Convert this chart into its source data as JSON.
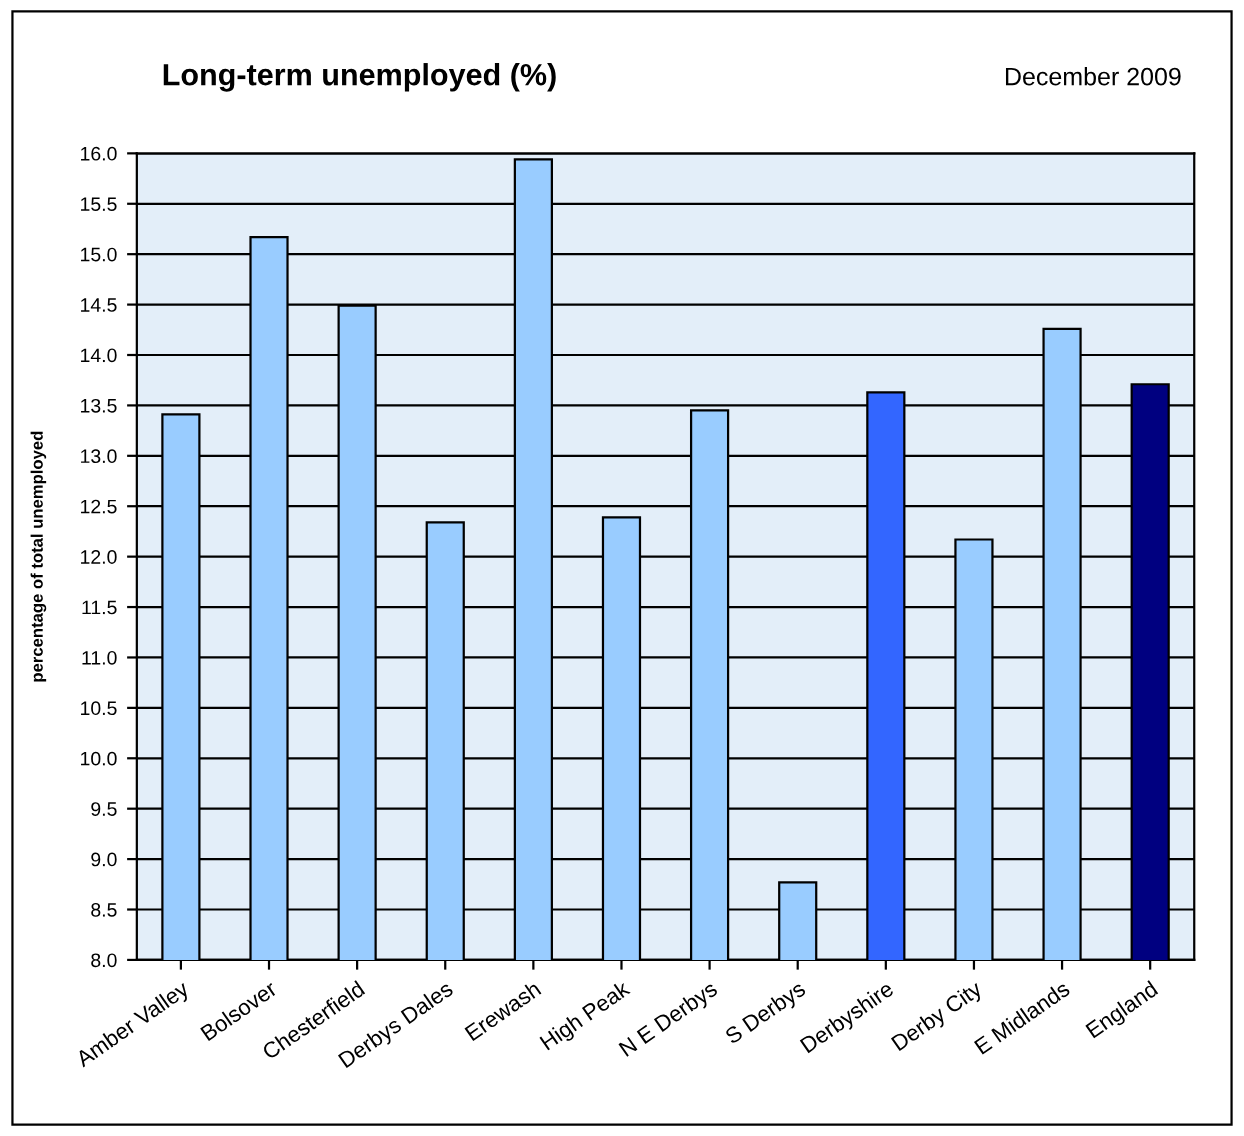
{
  "chart_data": {
    "type": "bar",
    "title": "Long-term unemployed (%)",
    "ylabel": "percentage of total unemployed",
    "annotations": [
      "December 2009"
    ],
    "categories": [
      "Amber Valley",
      "Bolsover",
      "Chesterfield",
      "Derbys Dales",
      "Erewash",
      "High Peak",
      "N E Derbys",
      "S Derbys",
      "Derbyshire",
      "Derby City",
      "E Midlands",
      "England"
    ],
    "values": [
      13.41,
      15.17,
      14.49,
      12.34,
      15.94,
      12.39,
      13.45,
      8.77,
      13.63,
      12.17,
      14.26,
      13.71
    ],
    "colors": [
      "#99ccff",
      "#99ccff",
      "#99ccff",
      "#99ccff",
      "#99ccff",
      "#99ccff",
      "#99ccff",
      "#99ccff",
      "#3366ff",
      "#99ccff",
      "#99ccff",
      "#000080"
    ],
    "ylim": [
      8.0,
      16.0
    ],
    "yticks": [
      {
        "value": 8,
        "label": "8.0"
      },
      8.5,
      {
        "value": 9,
        "label": "9.0"
      },
      9.5,
      {
        "value": 10,
        "label": "10.0"
      },
      10.5,
      {
        "value": 11,
        "label": "11.0"
      },
      11.5,
      {
        "value": 12,
        "label": "12.0"
      },
      12.5,
      {
        "value": 13,
        "label": "13.0"
      },
      13.5,
      {
        "value": 14,
        "label": "14.0"
      },
      14.5,
      {
        "value": 15,
        "label": "15.0"
      },
      15.5,
      {
        "value": 16,
        "label": "16.0"
      }
    ],
    "grid": "y",
    "legend": false
  }
}
